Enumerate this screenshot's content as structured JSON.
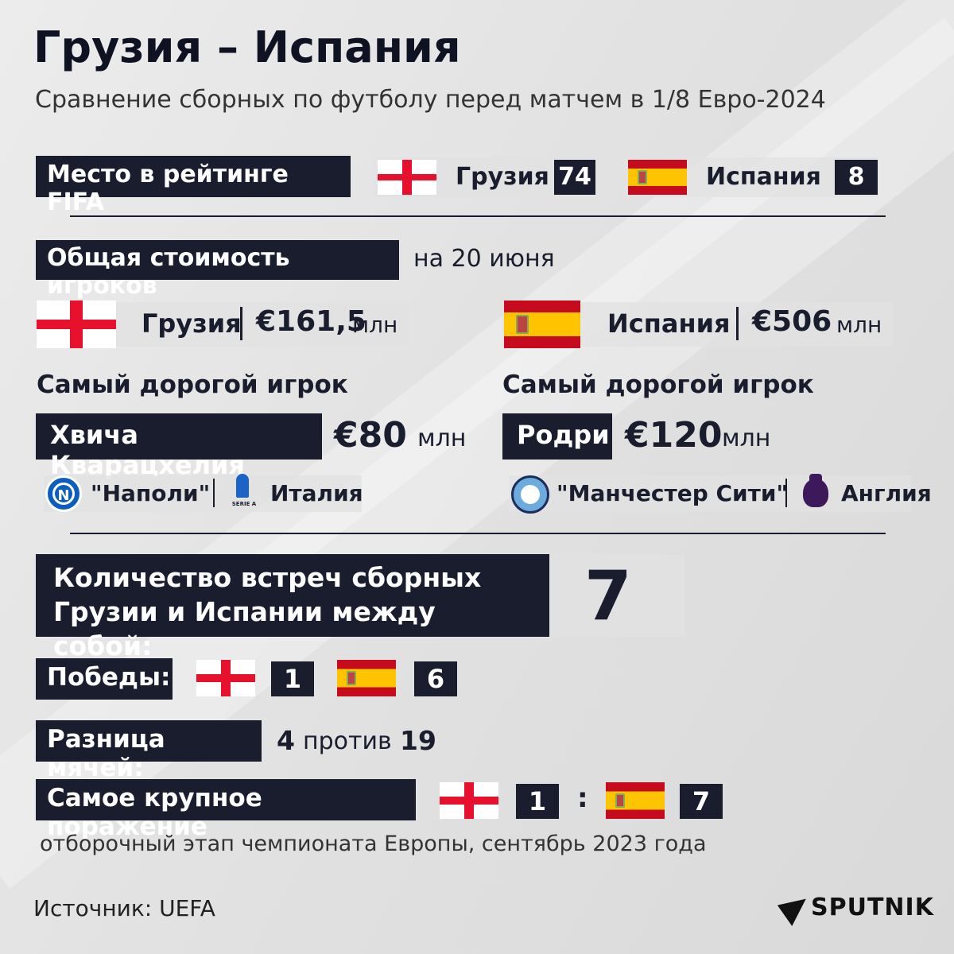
{
  "header": {
    "title": "Грузия – Испания",
    "subtitle": "Сравнение сборных по футболу перед матчем в 1/8 Евро-2024"
  },
  "fifa": {
    "label": "Место в рейтинге FIFA",
    "georgia_name": "Грузия",
    "georgia_rank": "74",
    "spain_name": "Испания",
    "spain_rank": "8"
  },
  "value": {
    "label": "Общая стоимость игроков",
    "date": "на 20 июня",
    "georgia_name": "Грузия",
    "georgia_value": "€161,5",
    "spain_name": "Испания",
    "spain_value": "€506",
    "unit": "млн"
  },
  "georgia_player": {
    "heading": "Самый дорогой игрок",
    "name": "Хвича Кварацхелия",
    "value": "€80",
    "unit": "млн",
    "club": "\"Наполи\"",
    "league_country": "Италия",
    "league_logo_text": "SERIE A"
  },
  "spain_player": {
    "heading": "Самый дорогой игрок",
    "name": "Родри",
    "value": "€120",
    "unit": "млн",
    "club": "\"Манчестер Сити\"",
    "league_country": "Англия"
  },
  "meetings": {
    "label_line1": "Количество встреч сборных",
    "label_line2": "Грузии и Испании между собой:",
    "count": "7"
  },
  "wins": {
    "label": "Победы:",
    "georgia": "1",
    "spain": "6"
  },
  "goals": {
    "label": "Разница мячей:",
    "georgia": "4",
    "versus": "против",
    "spain": "19"
  },
  "defeat": {
    "label": "Самое крупное поражение",
    "georgia": "1",
    "colon": ":",
    "spain": "7",
    "note": "отборочный этап чемпионата Европы, сентябрь 2023 года"
  },
  "footer": {
    "source": "Источник: UEFA",
    "brand": "SPUTNIK"
  },
  "colors": {
    "dark": "#1a1d2e",
    "georgia_red": "#e8112d",
    "spain_red": "#c60b1e",
    "spain_yellow": "#ffc400"
  }
}
